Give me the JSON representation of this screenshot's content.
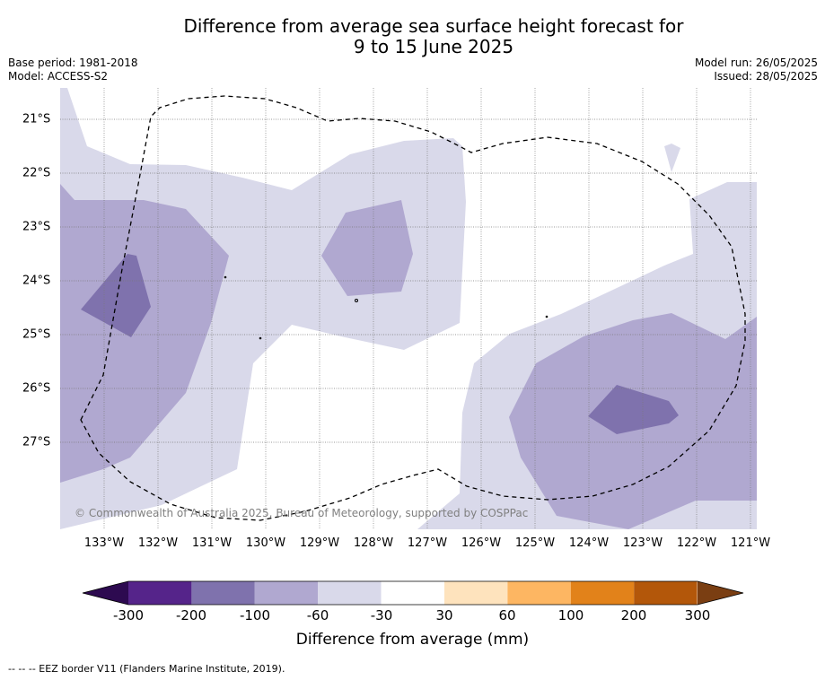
{
  "title_line1": "Difference from average sea surface height forecast for",
  "title_line2": "9 to 15 June 2025",
  "base_period": "Base period: 1981-2018",
  "model": "Model: ACCESS-S2",
  "model_run": "Model run: 26/05/2025",
  "issued": "Issued: 28/05/2025",
  "credit": "© Commonwealth of Australia 2025, Bureau of Meteorology, supported by COSPPac",
  "lat_ticks": [
    "21°S",
    "22°S",
    "23°S",
    "24°S",
    "25°S",
    "26°S",
    "27°S"
  ],
  "lon_ticks": [
    "133°W",
    "132°W",
    "131°W",
    "130°W",
    "129°W",
    "128°W",
    "127°W",
    "126°W",
    "125°W",
    "124°W",
    "123°W",
    "122°W",
    "121°W"
  ],
  "colorbar": {
    "title": "Difference from average (mm)",
    "labels": [
      "-300",
      "-200",
      "-100",
      "-60",
      "-30",
      "30",
      "60",
      "100",
      "200",
      "300"
    ],
    "colors": [
      "#2d0a50",
      "#55248a",
      "#7f72ad",
      "#b0a8d0",
      "#d9d9ea",
      "#ffffff",
      "#fee3bd",
      "#fdb662",
      "#e2821a",
      "#b3570a",
      "#7a3e12"
    ]
  },
  "footer": "-- -- -- EEZ border V11 (Flanders Marine Institute, 2019)."
}
